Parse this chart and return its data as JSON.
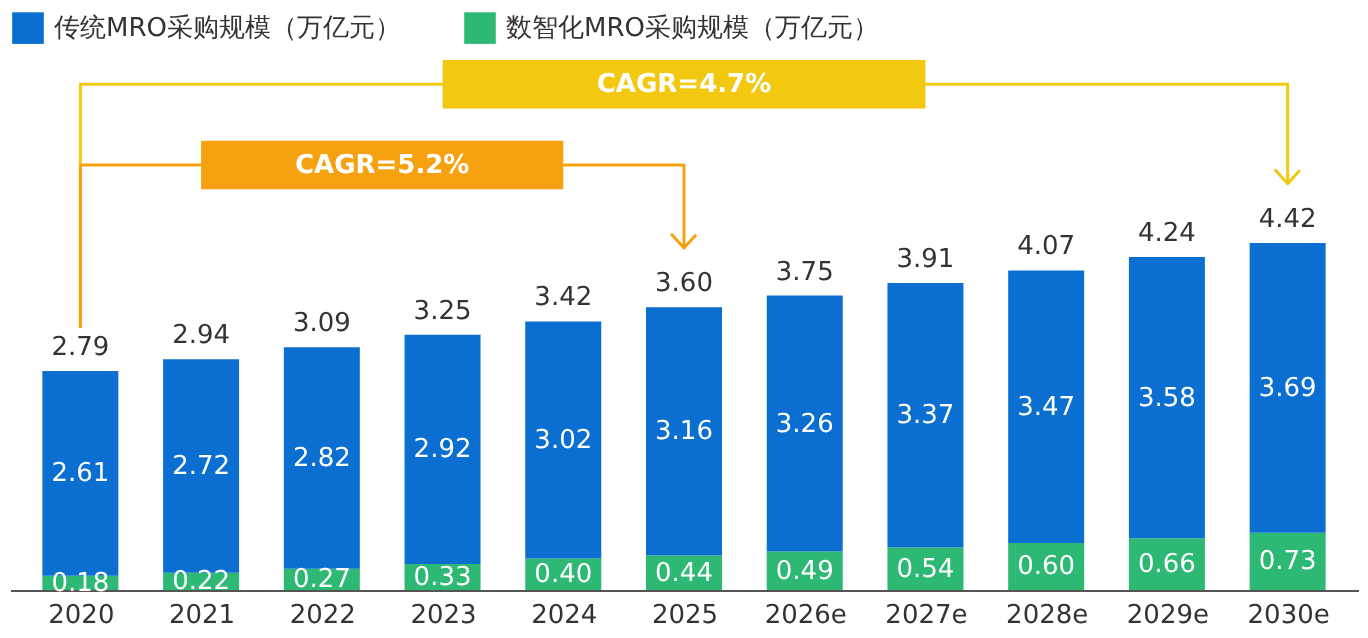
{
  "chart_data": {
    "type": "bar",
    "stacked": true,
    "categories": [
      "2020",
      "2021",
      "2022",
      "2023",
      "2024",
      "2025",
      "2026e",
      "2027e",
      "2028e",
      "2029e",
      "2030e"
    ],
    "series": [
      {
        "name": "数智化MRO采购规模（万亿元）",
        "color": "#2db873",
        "values": [
          0.18,
          0.22,
          0.27,
          0.33,
          0.4,
          0.44,
          0.49,
          0.54,
          0.6,
          0.66,
          0.73
        ],
        "value_labels": [
          "0.18",
          "0.22",
          "0.27",
          "0.33",
          "0.40",
          "0.44",
          "0.49",
          "0.54",
          "0.60",
          "0.66",
          "0.73"
        ]
      },
      {
        "name": "传统MRO采购规模（万亿元）",
        "color": "#0b6fd1",
        "values": [
          2.61,
          2.72,
          2.82,
          2.92,
          3.02,
          3.16,
          3.26,
          3.37,
          3.47,
          3.58,
          3.69
        ],
        "value_labels": [
          "2.61",
          "2.72",
          "2.82",
          "2.92",
          "3.02",
          "3.16",
          "3.26",
          "3.37",
          "3.47",
          "3.58",
          "3.69"
        ]
      }
    ],
    "totals": [
      "2.79",
      "2.94",
      "3.09",
      "3.25",
      "3.42",
      "3.60",
      "3.75",
      "3.91",
      "4.07",
      "4.24",
      "4.42"
    ],
    "annotations": [
      "CAGR=4.7%",
      "CAGR=5.2%"
    ],
    "legend": "top left"
  }
}
